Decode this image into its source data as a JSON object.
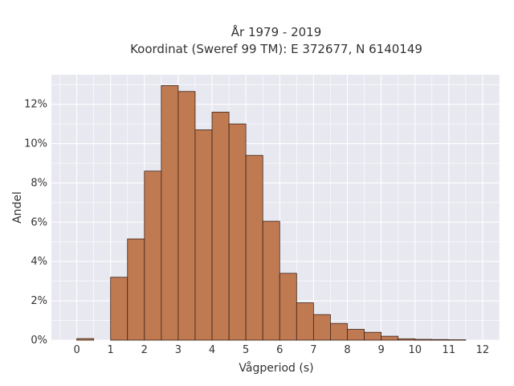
{
  "chart_data": {
    "type": "bar",
    "title": "År 1979 - 2019",
    "subtitle": "Koordinat (Sweref 99 TM): E 372677, N 6140149",
    "xlabel": "Vågperiod (s)",
    "ylabel": "Andel",
    "xlim": [
      -0.75,
      12.5
    ],
    "ylim": [
      0,
      13.5
    ],
    "x_ticks": [
      0,
      1,
      2,
      3,
      4,
      5,
      6,
      7,
      8,
      9,
      10,
      11,
      12
    ],
    "y_ticks": [
      0,
      2,
      4,
      6,
      8,
      10,
      12
    ],
    "y_tick_labels": [
      "0%",
      "2%",
      "4%",
      "6%",
      "8%",
      "10%",
      "12%"
    ],
    "bin_width": 0.5,
    "bins": [
      {
        "start": 0.0,
        "value": 0.08
      },
      {
        "start": 1.0,
        "value": 3.2
      },
      {
        "start": 1.5,
        "value": 5.15
      },
      {
        "start": 2.0,
        "value": 8.6
      },
      {
        "start": 2.5,
        "value": 12.95
      },
      {
        "start": 3.0,
        "value": 12.65
      },
      {
        "start": 3.5,
        "value": 10.7
      },
      {
        "start": 4.0,
        "value": 11.6
      },
      {
        "start": 4.5,
        "value": 11.0
      },
      {
        "start": 5.0,
        "value": 9.4
      },
      {
        "start": 5.5,
        "value": 6.05
      },
      {
        "start": 6.0,
        "value": 3.4
      },
      {
        "start": 6.5,
        "value": 1.9
      },
      {
        "start": 7.0,
        "value": 1.3
      },
      {
        "start": 7.5,
        "value": 0.85
      },
      {
        "start": 8.0,
        "value": 0.55
      },
      {
        "start": 8.5,
        "value": 0.4
      },
      {
        "start": 9.0,
        "value": 0.2
      },
      {
        "start": 9.5,
        "value": 0.07
      },
      {
        "start": 10.0,
        "value": 0.04
      },
      {
        "start": 10.5,
        "value": 0.03
      },
      {
        "start": 11.0,
        "value": 0.02
      }
    ],
    "grid": true,
    "colors": {
      "bar_fill": "#bf7a52",
      "bar_edge": "#3d2418",
      "plot_bg": "#e8e8f0",
      "grid": "#ffffff"
    }
  }
}
